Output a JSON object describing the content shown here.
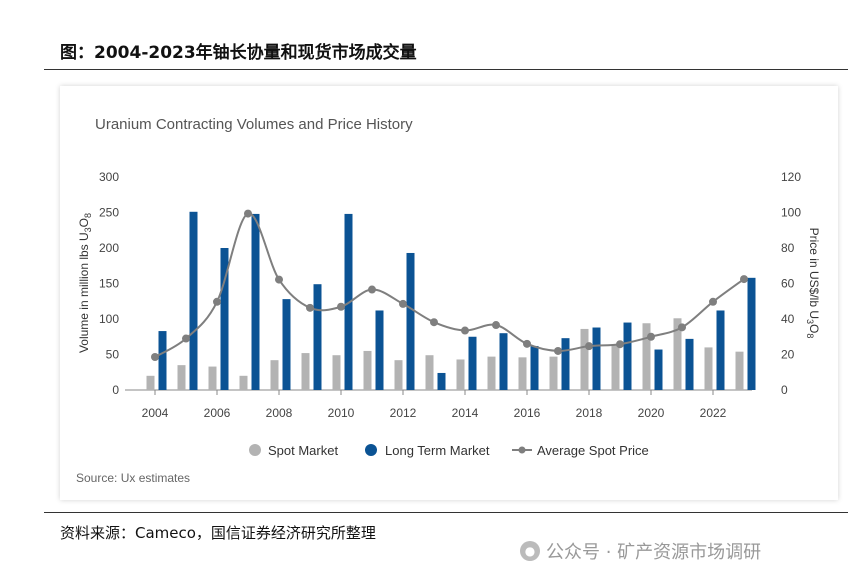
{
  "header": {
    "title": "图：2004-2023年铀长协量和现货市场成交量"
  },
  "footer": {
    "source": "资料来源：Cameco，国信证券经济研究所整理",
    "watermark": "公众号 · 矿产资源市场调研",
    "watermark_icon": "wechat-icon"
  },
  "colors": {
    "spot": "#b3b3b3",
    "long_term": "#0b5394",
    "price": "#7f7f7f"
  },
  "chart_data": {
    "type": "bar",
    "title": "Uranium Contracting Volumes and Price History",
    "source_note": "Source: Ux estimates",
    "x": [
      2004,
      2005,
      2006,
      2007,
      2008,
      2009,
      2010,
      2011,
      2012,
      2013,
      2014,
      2015,
      2016,
      2017,
      2018,
      2019,
      2020,
      2021,
      2022,
      2023
    ],
    "x_ticks": [
      "2004",
      "2006",
      "2008",
      "2010",
      "2012",
      "2014",
      "2016",
      "2018",
      "2020",
      "2022"
    ],
    "ylabel": "Volume in million lbs U",
    "ylabel_sub1": "3",
    "ylabel_mid": "O",
    "ylabel_sub2": "8",
    "ylim": [
      0,
      300
    ],
    "y_ticks": [
      "0",
      "50",
      "100",
      "150",
      "200",
      "250",
      "300"
    ],
    "y2label": "Price in US$/lb U",
    "y2label_sub1": "3",
    "y2label_mid": "O",
    "y2label_sub2": "8",
    "y2lim": [
      0,
      120
    ],
    "y2_ticks": [
      "0",
      "20",
      "40",
      "60",
      "80",
      "100",
      "120"
    ],
    "series": [
      {
        "name": "Spot Market",
        "type": "bar",
        "values": [
          20,
          35,
          33,
          20,
          42,
          52,
          49,
          55,
          42,
          49,
          43,
          47,
          46,
          47,
          86,
          63,
          94,
          101,
          60,
          54
        ]
      },
      {
        "name": "Long Term Market",
        "type": "bar",
        "values": [
          83,
          251,
          200,
          248,
          128,
          149,
          248,
          112,
          193,
          24,
          75,
          80,
          62,
          73,
          88,
          95,
          57,
          72,
          112,
          158
        ]
      },
      {
        "name": "Average Spot Price",
        "type": "line",
        "axis": "right",
        "values": [
          18.6,
          29,
          49.7,
          99.4,
          62.2,
          46.3,
          46.9,
          56.6,
          48.5,
          38.2,
          33.5,
          36.6,
          26,
          22,
          24.7,
          25.8,
          30,
          35.3,
          49.7,
          62.5
        ]
      }
    ],
    "legend": [
      "Spot Market",
      "Long Term Market",
      "Average Spot Price"
    ],
    "legend_position": "bottom"
  }
}
